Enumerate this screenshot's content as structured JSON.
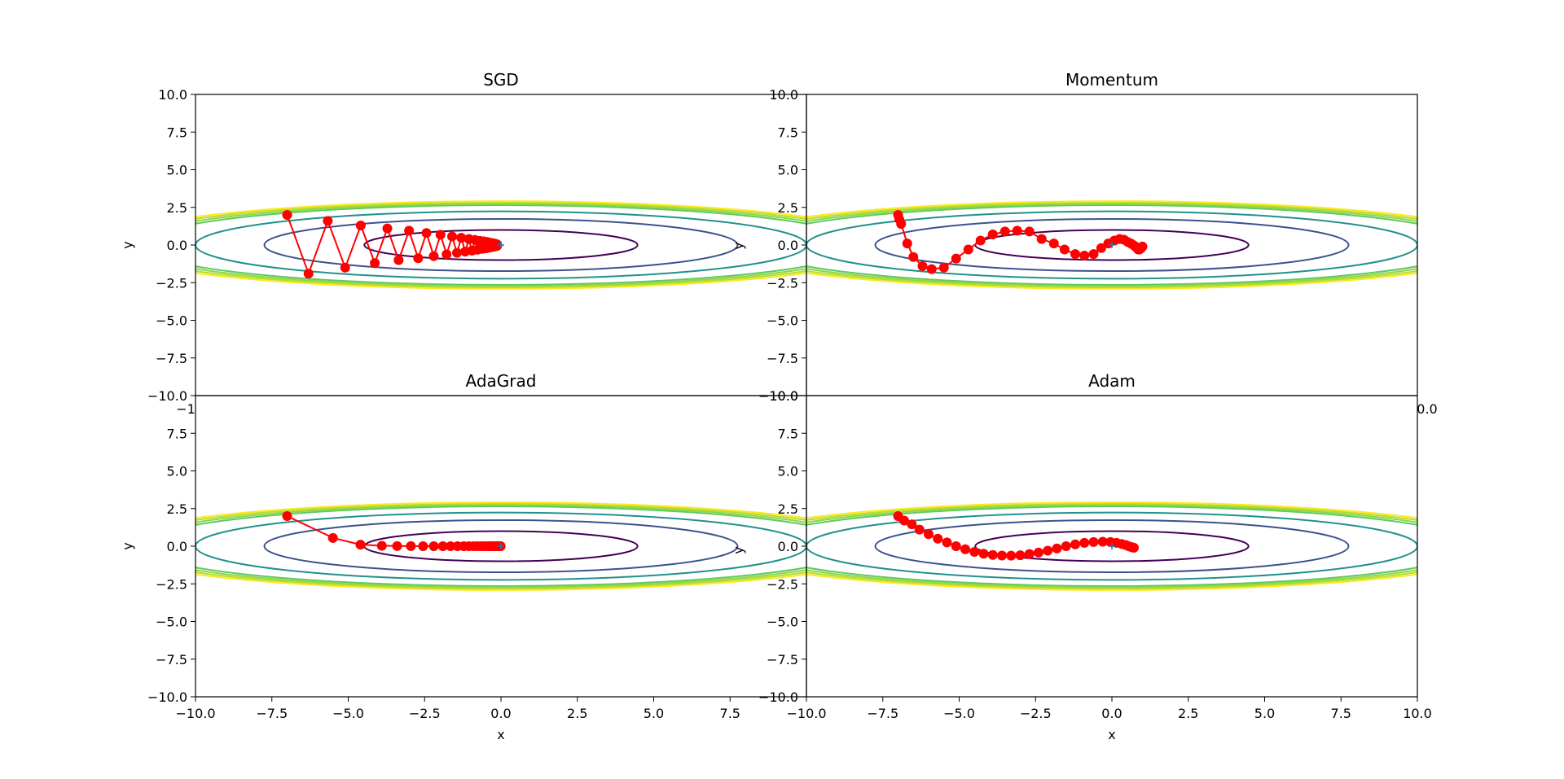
{
  "figure": {
    "background": "#ffffff"
  },
  "chart_data": [
    {
      "type": "line",
      "title": "SGD",
      "xlabel": "",
      "ylabel": "y",
      "xlim": [
        -10,
        10
      ],
      "ylim": [
        -10,
        10
      ],
      "xticks": [],
      "yticks": [
        "10.0",
        "7.5",
        "5.0",
        "2.5",
        "0.0",
        "−2.5",
        "−5.0",
        "−7.5",
        "−10.0"
      ],
      "overflow_texts": [
        "−1",
        "y"
      ],
      "contours": {
        "function": "x^2/20 + y^2",
        "levels": [
          1,
          3,
          5,
          7,
          7.5,
          8,
          8.5
        ],
        "colors": [
          "#440154",
          "#3b528b",
          "#21918c",
          "#5ec962",
          "#8fd744",
          "#b5de2b",
          "#fde725"
        ]
      },
      "series": [
        {
          "name": "SGD",
          "color": "#ff0000",
          "marker": "o",
          "x": [
            -7.0,
            -6.3,
            -5.67,
            -5.1,
            -4.59,
            -4.13,
            -3.72,
            -3.35,
            -3.01,
            -2.71,
            -2.44,
            -2.2,
            -1.98,
            -1.78,
            -1.6,
            -1.44,
            -1.3,
            -1.17,
            -1.05,
            -0.95,
            -0.85,
            -0.77,
            -0.69,
            -0.62,
            -0.56,
            -0.5,
            -0.45,
            -0.41,
            -0.37,
            -0.33,
            -0.3,
            -0.27,
            -0.24,
            -0.22,
            -0.2,
            -0.18,
            -0.16,
            -0.14,
            -0.13,
            -0.12
          ],
          "y": [
            2.0,
            -1.9,
            1.6,
            -1.5,
            1.3,
            -1.2,
            1.1,
            -1.0,
            0.95,
            -0.88,
            0.8,
            -0.74,
            0.68,
            -0.62,
            0.57,
            -0.52,
            0.48,
            -0.44,
            0.4,
            -0.37,
            0.34,
            -0.31,
            0.28,
            -0.26,
            0.24,
            -0.22,
            0.2,
            -0.18,
            0.16,
            -0.15,
            0.13,
            -0.12,
            0.11,
            -0.1,
            0.09,
            -0.08,
            0.07,
            -0.06,
            0.05,
            -0.04
          ]
        }
      ]
    },
    {
      "type": "line",
      "title": "Momentum",
      "xlabel": "",
      "ylabel": "",
      "xlim": [
        -10,
        10
      ],
      "ylim": [
        -10,
        10
      ],
      "xticks": [],
      "yticks": [
        "10.0",
        "7.5",
        "5.0",
        "2.5",
        "0.0",
        "−2.5",
        "−5.0",
        "−7.5",
        "−10.0"
      ],
      "overflow_texts": [
        "0.0"
      ],
      "contours": {
        "function": "x^2/20 + y^2",
        "levels": [
          1,
          3,
          5,
          7,
          7.5,
          8,
          8.5
        ],
        "colors": [
          "#440154",
          "#3b528b",
          "#21918c",
          "#5ec962",
          "#8fd744",
          "#b5de2b",
          "#fde725"
        ]
      },
      "series": [
        {
          "name": "Momentum",
          "color": "#ff0000",
          "marker": "o",
          "x": [
            -7.0,
            -6.96,
            -6.9,
            -6.7,
            -6.5,
            -6.2,
            -5.9,
            -5.5,
            -5.1,
            -4.7,
            -4.3,
            -3.9,
            -3.5,
            -3.1,
            -2.7,
            -2.3,
            -1.9,
            -1.55,
            -1.2,
            -0.9,
            -0.6,
            -0.35,
            -0.12,
            0.08,
            0.25,
            0.4,
            0.52,
            0.62,
            0.7,
            0.77,
            0.82,
            0.86,
            0.9,
            0.93,
            0.96,
            0.98,
            1.0
          ],
          "y": [
            2.0,
            1.7,
            1.4,
            0.1,
            -0.8,
            -1.4,
            -1.6,
            -1.5,
            -0.9,
            -0.3,
            0.3,
            0.7,
            0.9,
            0.95,
            0.9,
            0.4,
            0.1,
            -0.3,
            -0.6,
            -0.7,
            -0.6,
            -0.2,
            0.1,
            0.3,
            0.4,
            0.35,
            0.2,
            0.1,
            0.0,
            -0.1,
            -0.2,
            -0.3,
            -0.3,
            -0.25,
            -0.2,
            -0.15,
            -0.1
          ]
        }
      ]
    },
    {
      "type": "line",
      "title": "AdaGrad",
      "xlabel": "x",
      "ylabel": "y",
      "xlim": [
        -10,
        10
      ],
      "ylim": [
        -10,
        10
      ],
      "xticks": [
        "−10.0",
        "−7.5",
        "−5.0",
        "−2.5",
        "0.0",
        "2.5",
        "5.0",
        "7.5"
      ],
      "yticks": [
        "7.5",
        "5.0",
        "2.5",
        "0.0",
        "−2.5",
        "−5.0",
        "−7.5",
        "−10.0"
      ],
      "overflow_texts": [
        "y"
      ],
      "contours": {
        "function": "x^2/20 + y^2",
        "levels": [
          1,
          3,
          5,
          7,
          7.5,
          8,
          8.5
        ],
        "colors": [
          "#440154",
          "#3b528b",
          "#21918c",
          "#5ec962",
          "#8fd744",
          "#b5de2b",
          "#fde725"
        ]
      },
      "series": [
        {
          "name": "AdaGrad",
          "color": "#ff0000",
          "marker": "o",
          "x": [
            -7.0,
            -5.5,
            -4.6,
            -3.9,
            -3.4,
            -2.95,
            -2.55,
            -2.2,
            -1.9,
            -1.65,
            -1.42,
            -1.22,
            -1.05,
            -0.9,
            -0.77,
            -0.66,
            -0.56,
            -0.48,
            -0.41,
            -0.35,
            -0.3,
            -0.25,
            -0.21,
            -0.18,
            -0.15,
            -0.12,
            -0.1,
            -0.08,
            -0.06,
            -0.05,
            -0.04,
            -0.03,
            -0.02,
            -0.01
          ],
          "y": [
            2.0,
            0.55,
            0.1,
            0.03,
            0.01,
            0.005,
            0.002,
            0.001,
            0.0,
            0.0,
            0.0,
            0.0,
            0.0,
            0.0,
            0.0,
            0.0,
            0.0,
            0.0,
            0.0,
            0.0,
            0.0,
            0.0,
            0.0,
            0.0,
            0.0,
            0.0,
            0.0,
            0.0,
            0.0,
            0.0,
            0.0,
            0.0,
            0.0,
            0.0
          ]
        }
      ]
    },
    {
      "type": "line",
      "title": "Adam",
      "xlabel": "x",
      "ylabel": "",
      "xlim": [
        -10,
        10
      ],
      "ylim": [
        -10,
        10
      ],
      "xticks": [
        "−10.0",
        "−7.5",
        "−5.0",
        "−2.5",
        "0.0",
        "2.5",
        "5.0",
        "7.5",
        "10.0"
      ],
      "yticks": [
        "10.0",
        "7.5",
        "5.0",
        "2.5",
        "0.0",
        "−2.5",
        "−5.0",
        "−7.5",
        "−10.0"
      ],
      "overflow_texts": [],
      "contours": {
        "function": "x^2/20 + y^2",
        "levels": [
          1,
          3,
          5,
          7,
          7.5,
          8,
          8.5
        ],
        "colors": [
          "#440154",
          "#3b528b",
          "#21918c",
          "#5ec962",
          "#8fd744",
          "#b5de2b",
          "#fde725"
        ]
      },
      "series": [
        {
          "name": "Adam",
          "color": "#ff0000",
          "marker": "o",
          "x": [
            -7.0,
            -6.8,
            -6.55,
            -6.3,
            -6.0,
            -5.7,
            -5.4,
            -5.1,
            -4.8,
            -4.5,
            -4.2,
            -3.9,
            -3.6,
            -3.3,
            -3.0,
            -2.7,
            -2.4,
            -2.1,
            -1.8,
            -1.5,
            -1.2,
            -0.9,
            -0.6,
            -0.3,
            -0.05,
            0.15,
            0.32,
            0.45,
            0.55,
            0.62,
            0.68,
            0.72
          ],
          "y": [
            2.0,
            1.7,
            1.45,
            1.1,
            0.8,
            0.5,
            0.25,
            0.0,
            -0.2,
            -0.38,
            -0.5,
            -0.58,
            -0.62,
            -0.63,
            -0.6,
            -0.52,
            -0.42,
            -0.3,
            -0.15,
            0.0,
            0.12,
            0.22,
            0.28,
            0.3,
            0.28,
            0.22,
            0.15,
            0.08,
            0.0,
            -0.05,
            -0.08,
            -0.1
          ]
        }
      ]
    }
  ]
}
